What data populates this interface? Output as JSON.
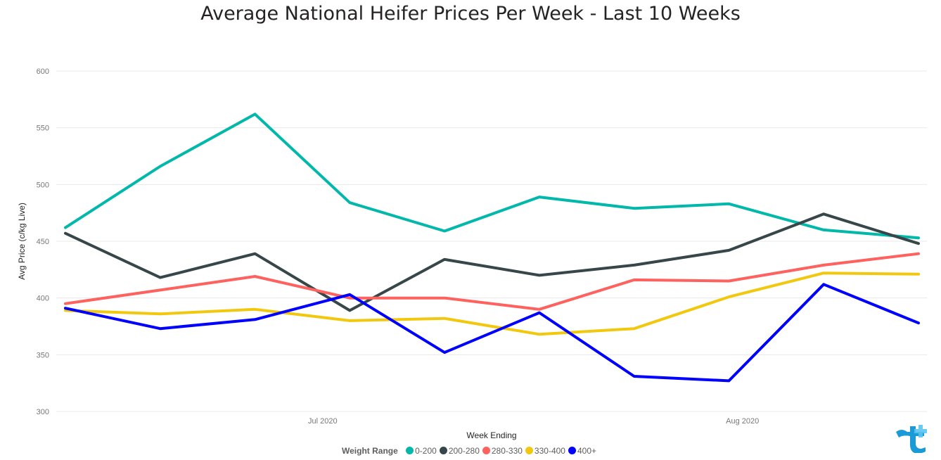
{
  "chart_data": {
    "type": "line",
    "title": "Average National Heifer Prices Per Week - Last 10 Weeks",
    "xlabel": "Week Ending",
    "ylabel": "Avg Price (c/kg Live)",
    "ylim": [
      300,
      600
    ],
    "yticks": [
      "300",
      "350",
      "400",
      "450",
      "500",
      "550",
      "600"
    ],
    "x_ticks": [
      {
        "label": "Jul 2020",
        "at": "2020-07-01"
      },
      {
        "label": "Aug 2020",
        "at": "2020-08-01"
      }
    ],
    "x": [
      "2020-06-12",
      "2020-06-19",
      "2020-06-26",
      "2020-07-03",
      "2020-07-10",
      "2020-07-17",
      "2020-07-24",
      "2020-07-31",
      "2020-08-07",
      "2020-08-14"
    ],
    "grid": true,
    "legend_title": "Weight Range",
    "legend_position": "bottom",
    "series": [
      {
        "name": "0-200",
        "color": "#01B8AA",
        "values": [
          462,
          516,
          562,
          484,
          459,
          489,
          479,
          483,
          460,
          453
        ]
      },
      {
        "name": "200-280",
        "color": "#374649",
        "values": [
          457,
          418,
          439,
          389,
          434,
          420,
          429,
          442,
          474,
          448
        ]
      },
      {
        "name": "280-330",
        "color": "#FD625E",
        "values": [
          395,
          407,
          419,
          400,
          400,
          390,
          416,
          415,
          429,
          439
        ]
      },
      {
        "name": "330-400",
        "color": "#F2C80F",
        "values": [
          389,
          386,
          390,
          380,
          382,
          368,
          373,
          401,
          422,
          421
        ]
      },
      {
        "name": "400+",
        "color": "#0000FF",
        "values": [
          391,
          373,
          381,
          403,
          352,
          387,
          331,
          327,
          412,
          378
        ]
      }
    ]
  },
  "logo": {
    "icon": "brand-logo-icon",
    "color": "#1a9ad6"
  }
}
